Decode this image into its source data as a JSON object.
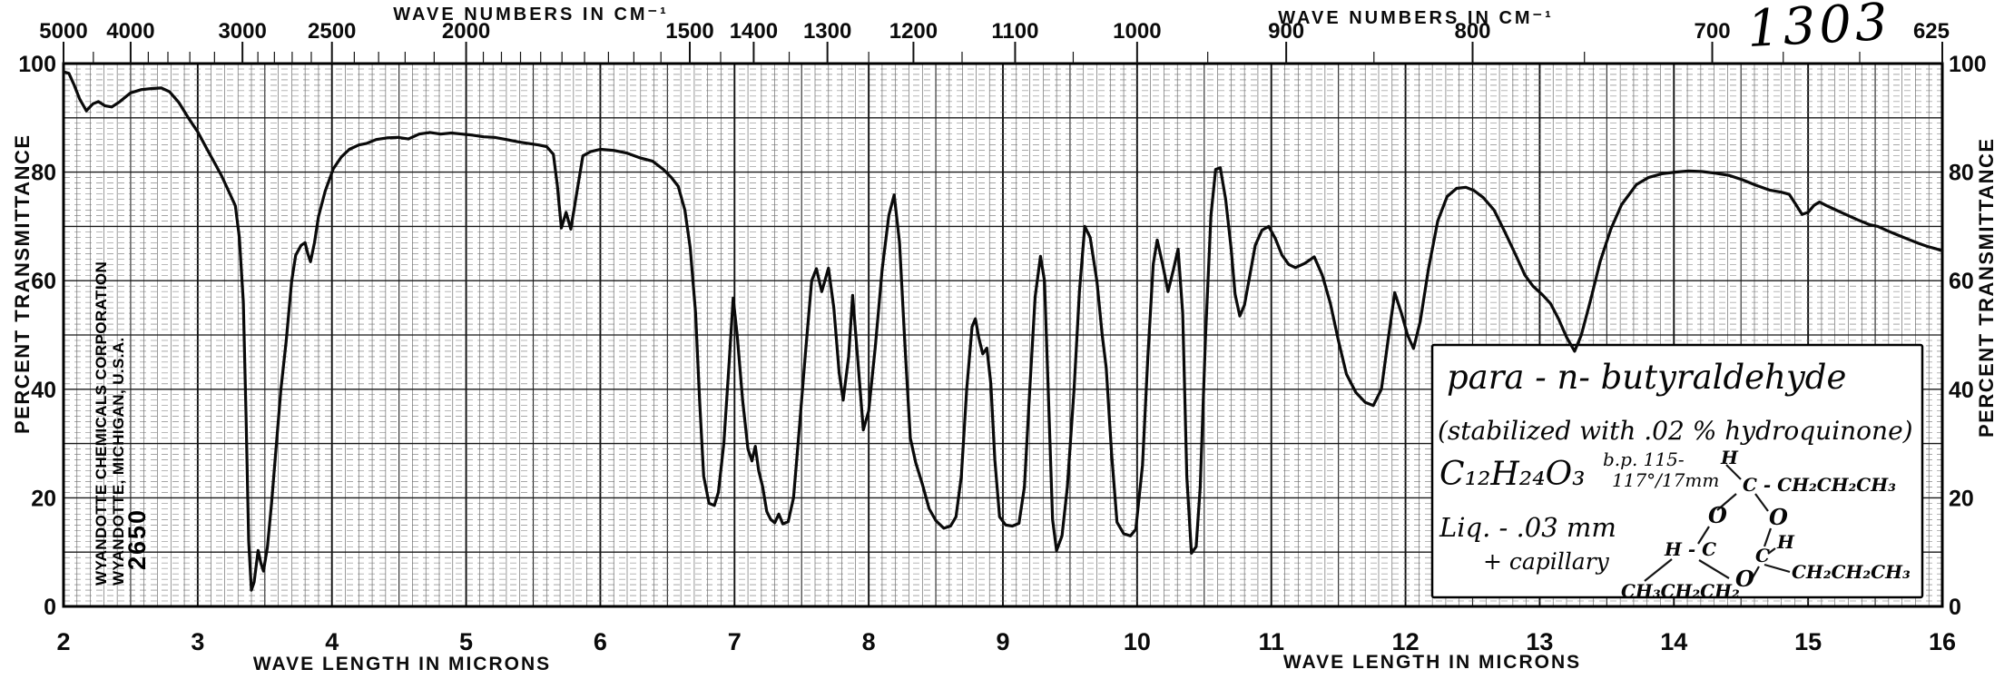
{
  "page": {
    "background": "#ffffff",
    "ink_color": "#0b0b0b",
    "spectrum_number": "1303"
  },
  "top_axis": {
    "title_left": "WAVE NUMBERS IN CM⁻¹",
    "title_right": "WAVE NUMBERS IN CM⁻¹",
    "labeled_ticks": [
      {
        "wavenumber": 5000,
        "label": "5000"
      },
      {
        "wavenumber": 4000,
        "label": "4000"
      },
      {
        "wavenumber": 3000,
        "label": "3000"
      },
      {
        "wavenumber": 2500,
        "label": "2500"
      },
      {
        "wavenumber": 2000,
        "label": "2000"
      },
      {
        "wavenumber": 1500,
        "label": "1500"
      },
      {
        "wavenumber": 1400,
        "label": "1400"
      },
      {
        "wavenumber": 1300,
        "label": "1300"
      },
      {
        "wavenumber": 1200,
        "label": "1200"
      },
      {
        "wavenumber": 1100,
        "label": "1100"
      },
      {
        "wavenumber": 1000,
        "label": "1000"
      },
      {
        "wavenumber": 900,
        "label": "900"
      },
      {
        "wavenumber": 800,
        "label": "800"
      },
      {
        "wavenumber": 700,
        "label": "700"
      },
      {
        "wavenumber": 625,
        "label": "625"
      }
    ],
    "minor_ticks": [
      4500,
      3800,
      3600,
      3400,
      3200,
      2900,
      2800,
      2700,
      2600,
      2400,
      2300,
      2200,
      2100,
      1950,
      1900,
      1850,
      1800,
      1750,
      1700,
      1650,
      1600,
      1550,
      1450,
      1350,
      1250,
      1150,
      1050,
      950,
      850,
      750,
      675,
      650
    ]
  },
  "bottom_axis": {
    "title_left": "WAVE LENGTH IN MICRONS",
    "title_right": "WAVE LENGTH IN MICRONS",
    "tick_labels": [
      "2",
      "3",
      "4",
      "5",
      "6",
      "7",
      "8",
      "9",
      "10",
      "11",
      "12",
      "13",
      "14",
      "15",
      "16"
    ]
  },
  "left_axis": {
    "title": "PERCENT TRANSMITTANCE",
    "tick_labels": [
      "100",
      "80",
      "60",
      "40",
      "20",
      "0"
    ]
  },
  "right_axis": {
    "title": "PERCENT TRANSMITTANCE",
    "tick_labels": [
      "100",
      "80",
      "60",
      "40",
      "20",
      "0"
    ]
  },
  "stamp": {
    "line1": "WYANDOTTE CHEMICALS CORPORATION",
    "line2": "WYANDOTTE, MICHIGAN, U.S.A.",
    "number": "2650"
  },
  "annotation": {
    "line1": "para - n- butyraldehyde",
    "line2": "(stabilized with .02 % hydroquinone)",
    "formula": "C₁₂H₂₄O₃",
    "bp_top": "b.p. 115-",
    "bp_bottom": "117°/17mm",
    "phase": "Liq. - .03 mm",
    "cell": "+ capillary",
    "structure_atoms": [
      "H",
      "C - CH₂CH₂CH₃",
      "O",
      "O",
      "H - C",
      "C",
      "H",
      "CH₂CH₂CH₃",
      "O",
      "CH₃CH₂CH₂"
    ]
  },
  "chart_data": {
    "type": "line",
    "title": "Infrared absorption spectrum of para-n-butyraldehyde (No. 1303)",
    "xlabel": "WAVE LENGTH IN MICRONS",
    "xlabel_top": "WAVE NUMBERS IN CM⁻¹",
    "ylabel": "PERCENT TRANSMITTANCE",
    "xlim": [
      2,
      16
    ],
    "ylim": [
      0,
      100
    ],
    "grid": true,
    "legend_position": "none",
    "series_name": "percent_transmittance_vs_wavelength_microns",
    "points_microns_percentT": [
      [
        2.0,
        98.5
      ],
      [
        2.04,
        98.2
      ],
      [
        2.08,
        96
      ],
      [
        2.12,
        93.5
      ],
      [
        2.17,
        91.3
      ],
      [
        2.22,
        92.6
      ],
      [
        2.26,
        93
      ],
      [
        2.31,
        92.2
      ],
      [
        2.36,
        92
      ],
      [
        2.42,
        93
      ],
      [
        2.5,
        94.6
      ],
      [
        2.58,
        95.2
      ],
      [
        2.66,
        95.4
      ],
      [
        2.73,
        95.5
      ],
      [
        2.79,
        94.8
      ],
      [
        2.86,
        92.8
      ],
      [
        2.93,
        90
      ],
      [
        3.0,
        87.4
      ],
      [
        3.07,
        84.2
      ],
      [
        3.13,
        81.5
      ],
      [
        3.18,
        79.2
      ],
      [
        3.24,
        76
      ],
      [
        3.28,
        73.8
      ],
      [
        3.31,
        68
      ],
      [
        3.34,
        56
      ],
      [
        3.36,
        35
      ],
      [
        3.38,
        12
      ],
      [
        3.4,
        3
      ],
      [
        3.42,
        4.5
      ],
      [
        3.45,
        10.3
      ],
      [
        3.47,
        8
      ],
      [
        3.49,
        6.5
      ],
      [
        3.52,
        11
      ],
      [
        3.55,
        19
      ],
      [
        3.58,
        28
      ],
      [
        3.62,
        40
      ],
      [
        3.66,
        49
      ],
      [
        3.7,
        60
      ],
      [
        3.73,
        64.7
      ],
      [
        3.77,
        66.5
      ],
      [
        3.8,
        67
      ],
      [
        3.82,
        65
      ],
      [
        3.84,
        63.5
      ],
      [
        3.87,
        67
      ],
      [
        3.9,
        71.8
      ],
      [
        3.95,
        76.5
      ],
      [
        4.01,
        80.6
      ],
      [
        4.07,
        82.8
      ],
      [
        4.13,
        84.2
      ],
      [
        4.2,
        85
      ],
      [
        4.26,
        85.3
      ],
      [
        4.33,
        86
      ],
      [
        4.41,
        86.3
      ],
      [
        4.49,
        86.4
      ],
      [
        4.57,
        86.1
      ],
      [
        4.65,
        87
      ],
      [
        4.73,
        87.3
      ],
      [
        4.81,
        87
      ],
      [
        4.89,
        87.2
      ],
      [
        4.97,
        87
      ],
      [
        5.05,
        86.8
      ],
      [
        5.13,
        86.5
      ],
      [
        5.21,
        86.4
      ],
      [
        5.3,
        86
      ],
      [
        5.38,
        85.6
      ],
      [
        5.46,
        85.3
      ],
      [
        5.54,
        85
      ],
      [
        5.6,
        84.7
      ],
      [
        5.65,
        83.3
      ],
      [
        5.68,
        77.5
      ],
      [
        5.71,
        69.7
      ],
      [
        5.745,
        72.6
      ],
      [
        5.78,
        69.5
      ],
      [
        5.82,
        75.5
      ],
      [
        5.87,
        83
      ],
      [
        5.93,
        83.8
      ],
      [
        6.0,
        84.2
      ],
      [
        6.1,
        84
      ],
      [
        6.2,
        83.5
      ],
      [
        6.3,
        82.6
      ],
      [
        6.39,
        82
      ],
      [
        6.47,
        80.5
      ],
      [
        6.53,
        79
      ],
      [
        6.58,
        77.4
      ],
      [
        6.63,
        73
      ],
      [
        6.67,
        66
      ],
      [
        6.71,
        54
      ],
      [
        6.74,
        38
      ],
      [
        6.77,
        24
      ],
      [
        6.81,
        19
      ],
      [
        6.85,
        18.6
      ],
      [
        6.88,
        21
      ],
      [
        6.92,
        30
      ],
      [
        6.96,
        45
      ],
      [
        6.99,
        56.8
      ],
      [
        7.02,
        50
      ],
      [
        7.06,
        38
      ],
      [
        7.1,
        29
      ],
      [
        7.13,
        26.8
      ],
      [
        7.155,
        29.5
      ],
      [
        7.18,
        25
      ],
      [
        7.21,
        22
      ],
      [
        7.24,
        17.5
      ],
      [
        7.27,
        16
      ],
      [
        7.3,
        15.4
      ],
      [
        7.33,
        17
      ],
      [
        7.36,
        15.2
      ],
      [
        7.4,
        15.6
      ],
      [
        7.44,
        20
      ],
      [
        7.48,
        32
      ],
      [
        7.53,
        47
      ],
      [
        7.575,
        60
      ],
      [
        7.61,
        62.2
      ],
      [
        7.65,
        58
      ],
      [
        7.7,
        62.3
      ],
      [
        7.74,
        55
      ],
      [
        7.78,
        43
      ],
      [
        7.81,
        38
      ],
      [
        7.85,
        46
      ],
      [
        7.88,
        57.3
      ],
      [
        7.92,
        45
      ],
      [
        7.96,
        32.5
      ],
      [
        8.0,
        36
      ],
      [
        8.05,
        48
      ],
      [
        8.1,
        62
      ],
      [
        8.15,
        72
      ],
      [
        8.19,
        75.8
      ],
      [
        8.23,
        67
      ],
      [
        8.27,
        48
      ],
      [
        8.31,
        31
      ],
      [
        8.35,
        26.5
      ],
      [
        8.4,
        22.5
      ],
      [
        8.45,
        18
      ],
      [
        8.5,
        15.8
      ],
      [
        8.56,
        14.4
      ],
      [
        8.61,
        14.8
      ],
      [
        8.65,
        16.5
      ],
      [
        8.69,
        24
      ],
      [
        8.73,
        40
      ],
      [
        8.77,
        51.5
      ],
      [
        8.795,
        53
      ],
      [
        8.82,
        49.5
      ],
      [
        8.85,
        46.5
      ],
      [
        8.88,
        47.6
      ],
      [
        8.91,
        41
      ],
      [
        8.94,
        27
      ],
      [
        8.975,
        16.5
      ],
      [
        9.02,
        15
      ],
      [
        9.07,
        14.8
      ],
      [
        9.12,
        15.3
      ],
      [
        9.16,
        22
      ],
      [
        9.2,
        40
      ],
      [
        9.24,
        57
      ],
      [
        9.28,
        64.5
      ],
      [
        9.31,
        60
      ],
      [
        9.34,
        38
      ],
      [
        9.37,
        16
      ],
      [
        9.4,
        10.3
      ],
      [
        9.44,
        13
      ],
      [
        9.48,
        22
      ],
      [
        9.53,
        40
      ],
      [
        9.57,
        58
      ],
      [
        9.61,
        70
      ],
      [
        9.65,
        68
      ],
      [
        9.7,
        60
      ],
      [
        9.74,
        50
      ],
      [
        9.77,
        44
      ],
      [
        9.81,
        28
      ],
      [
        9.85,
        15.5
      ],
      [
        9.9,
        13.4
      ],
      [
        9.95,
        13
      ],
      [
        9.99,
        14.2
      ],
      [
        10.04,
        26
      ],
      [
        10.08,
        46
      ],
      [
        10.12,
        63
      ],
      [
        10.15,
        67.5
      ],
      [
        10.19,
        63
      ],
      [
        10.23,
        58
      ],
      [
        10.27,
        62
      ],
      [
        10.305,
        65.8
      ],
      [
        10.34,
        54
      ],
      [
        10.37,
        24
      ],
      [
        10.405,
        9.8
      ],
      [
        10.44,
        11
      ],
      [
        10.47,
        22
      ],
      [
        10.51,
        50
      ],
      [
        10.55,
        72
      ],
      [
        10.585,
        80.5
      ],
      [
        10.62,
        80.8
      ],
      [
        10.66,
        75
      ],
      [
        10.7,
        66
      ],
      [
        10.73,
        57.5
      ],
      [
        10.765,
        53.5
      ],
      [
        10.8,
        55.5
      ],
      [
        10.84,
        61
      ],
      [
        10.88,
        66.5
      ],
      [
        10.93,
        69.3
      ],
      [
        10.98,
        70
      ],
      [
        11.03,
        67.8
      ],
      [
        11.08,
        64.7
      ],
      [
        11.13,
        63
      ],
      [
        11.18,
        62.4
      ],
      [
        11.25,
        63.2
      ],
      [
        11.32,
        64.4
      ],
      [
        11.38,
        61
      ],
      [
        11.44,
        55.8
      ],
      [
        11.5,
        49
      ],
      [
        11.56,
        42.8
      ],
      [
        11.63,
        39.4
      ],
      [
        11.7,
        37.6
      ],
      [
        11.76,
        37
      ],
      [
        11.82,
        40
      ],
      [
        11.87,
        49
      ],
      [
        11.92,
        57.8
      ],
      [
        11.97,
        54
      ],
      [
        12.015,
        50
      ],
      [
        12.06,
        47.5
      ],
      [
        12.11,
        52.5
      ],
      [
        12.17,
        62
      ],
      [
        12.24,
        71
      ],
      [
        12.31,
        75.5
      ],
      [
        12.38,
        77
      ],
      [
        12.45,
        77.2
      ],
      [
        12.51,
        76.6
      ],
      [
        12.58,
        75.3
      ],
      [
        12.66,
        73
      ],
      [
        12.74,
        69
      ],
      [
        12.82,
        64.8
      ],
      [
        12.89,
        61
      ],
      [
        12.95,
        59
      ],
      [
        13.02,
        57.4
      ],
      [
        13.08,
        55.8
      ],
      [
        13.14,
        53
      ],
      [
        13.2,
        49.6
      ],
      [
        13.26,
        47
      ],
      [
        13.31,
        50
      ],
      [
        13.38,
        56.5
      ],
      [
        13.45,
        63.5
      ],
      [
        13.53,
        69.5
      ],
      [
        13.61,
        74
      ],
      [
        13.72,
        77.7
      ],
      [
        13.81,
        79
      ],
      [
        13.91,
        79.7
      ],
      [
        14.01,
        80
      ],
      [
        14.11,
        80.2
      ],
      [
        14.21,
        80.1
      ],
      [
        14.31,
        79.8
      ],
      [
        14.41,
        79.4
      ],
      [
        14.51,
        78.6
      ],
      [
        14.61,
        77.6
      ],
      [
        14.71,
        76.7
      ],
      [
        14.8,
        76.3
      ],
      [
        14.86,
        75.9
      ],
      [
        14.91,
        74
      ],
      [
        14.955,
        72.2
      ],
      [
        15.0,
        72.6
      ],
      [
        15.045,
        73.9
      ],
      [
        15.085,
        74.5
      ],
      [
        15.14,
        73.8
      ],
      [
        15.21,
        73
      ],
      [
        15.28,
        72.2
      ],
      [
        15.37,
        71.2
      ],
      [
        15.46,
        70.3
      ],
      [
        15.52,
        70
      ],
      [
        15.6,
        69.1
      ],
      [
        15.68,
        68.3
      ],
      [
        15.75,
        67.6
      ],
      [
        15.82,
        66.9
      ],
      [
        15.89,
        66.3
      ],
      [
        15.95,
        65.9
      ],
      [
        16.0,
        65.5
      ]
    ]
  }
}
